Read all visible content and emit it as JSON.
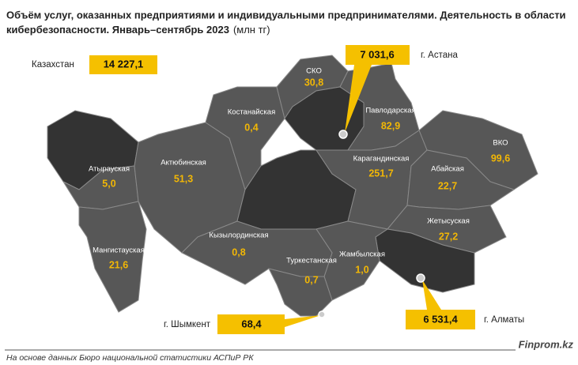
{
  "title_lines": [
    "Объём услуг, оказанных предприятиями и индивидуальными предпринимателями. Деятельность в области",
    "кибербезопасности. Январь–сентябрь 2023"
  ],
  "unit": "(млн тг)",
  "total": {
    "label": "Казахстан",
    "value": "14 227,1"
  },
  "cities": [
    {
      "label": "г. Астана",
      "value": "7 031,6"
    },
    {
      "label": "г. Алматы",
      "value": "6 531,4"
    },
    {
      "label": "г. Шымкент",
      "value": "68,4"
    }
  ],
  "regions": [
    {
      "name": "СКО",
      "value": "30,8"
    },
    {
      "name": "Костанайская",
      "value": "0,4"
    },
    {
      "name": "Павлодарская",
      "value": "82,9"
    },
    {
      "name": "ВКО",
      "value": "99,6"
    },
    {
      "name": "Актюбинская",
      "value": "51,3"
    },
    {
      "name": "Атырауская",
      "value": "5,0"
    },
    {
      "name": "Карагандинская",
      "value": "251,7"
    },
    {
      "name": "Абайская",
      "value": "22,7"
    },
    {
      "name": "Жетысуская",
      "value": "27,2"
    },
    {
      "name": "Кызылординская",
      "value": "0,8"
    },
    {
      "name": "Мангистауская",
      "value": "21,6"
    },
    {
      "name": "Туркестанская",
      "value": "0,7"
    },
    {
      "name": "Жамбылская",
      "value": "1,0"
    }
  ],
  "source": "На основе данных Бюро национальной статистики АСПиР РК",
  "brand": "Finprom.kz"
}
